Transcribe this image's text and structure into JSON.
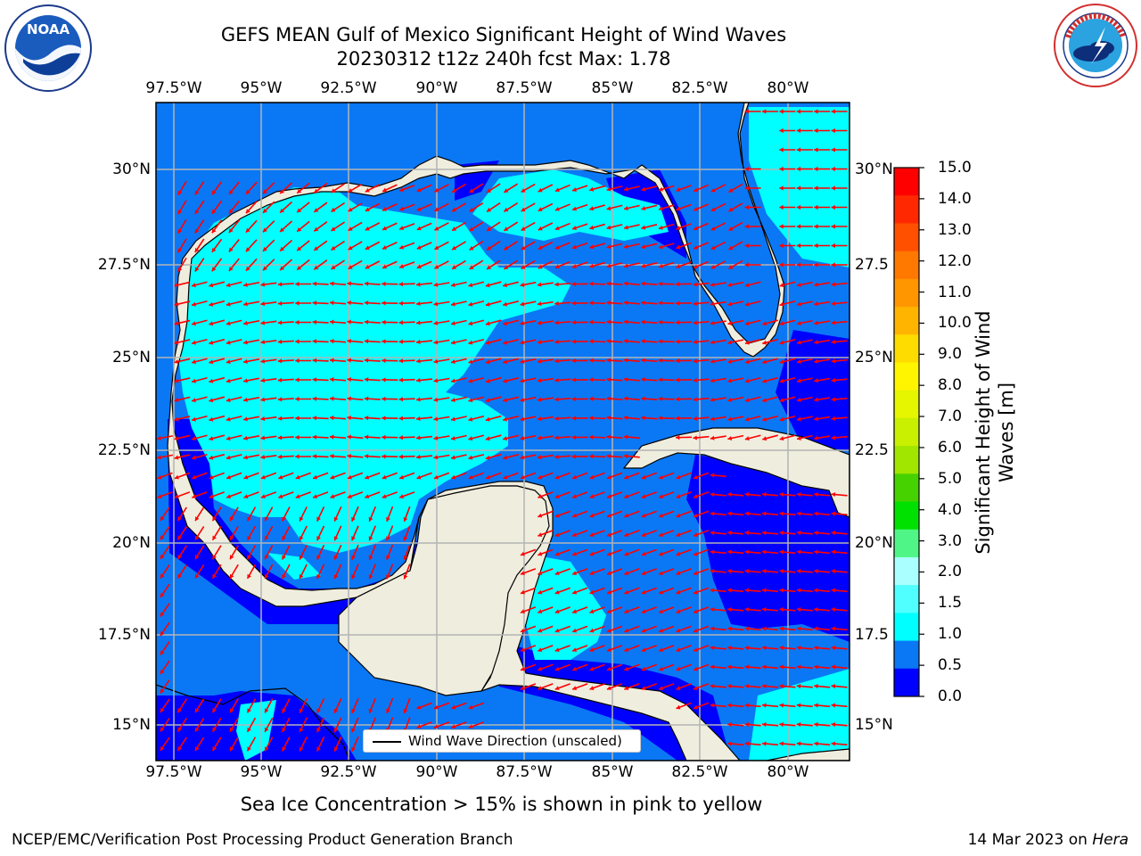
{
  "header": {
    "title_line1": "GEFS MEAN Gulf of Mexico Significant Height of Wind Waves",
    "title_line2": "20230312 t12z 240h fcst   Max: 1.78"
  },
  "logos": {
    "left_logo_text": "NOAA",
    "left_ring_text": "NATIONAL OCEANIC AND ATMOSPHERIC ADMINISTRATION · U.S. DEPARTMENT OF COMMERCE",
    "right_ring_text": "NATIONAL WEATHER SERVICE"
  },
  "map": {
    "lon_labels": [
      "97.5°W",
      "95°W",
      "92.5°W",
      "90°W",
      "87.5°W",
      "85°W",
      "82.5°W",
      "80°W"
    ],
    "lat_labels_left": [
      "30°N",
      "27.5°N",
      "25°N",
      "22.5°N",
      "20°N",
      "17.5°N",
      "15°N"
    ],
    "lat_labels_right": [
      "30°N",
      "27.5",
      "25°N",
      "22.5",
      "20°N",
      "17.5",
      "15°N"
    ],
    "legend_label": "Wind Wave Direction (unscaled)",
    "colors": {
      "land": "#efedde",
      "ocean_0_0_5": "#0000ff",
      "ocean_0_5_1_0": "#0a78f5",
      "ocean_1_0_1_5": "#00ffff",
      "arrow": "#ff0000",
      "grid": "#b4b4b4"
    }
  },
  "colorbar": {
    "ticks": [
      "15.0",
      "14.0",
      "13.0",
      "12.0",
      "11.0",
      "10.0",
      "9.0",
      "8.0",
      "7.0",
      "6.0",
      "5.0",
      "4.0",
      "3.0",
      "2.0",
      "1.5",
      "1.0",
      "0.5",
      "0.0"
    ],
    "colors_top_to_bottom": [
      "#ff0000",
      "#ff2800",
      "#ff5000",
      "#ff7800",
      "#ff9600",
      "#ffb400",
      "#ffdc00",
      "#fff500",
      "#e6f500",
      "#c8f000",
      "#a0e600",
      "#46d200",
      "#00e100",
      "#50f587",
      "#aaffff",
      "#50ffff",
      "#00ffff",
      "#0a78f5",
      "#0000ff"
    ],
    "label_line1": "Significant Height of Wind",
    "label_line2": "Waves [m]"
  },
  "note": "Sea Ice Concentration > 15% is shown in pink to yellow",
  "footer": {
    "left": "NCEP/EMC/Verification Post Processing Product Generation Branch",
    "right_date": "14 Mar 2023 on",
    "right_machine": "Hera"
  }
}
